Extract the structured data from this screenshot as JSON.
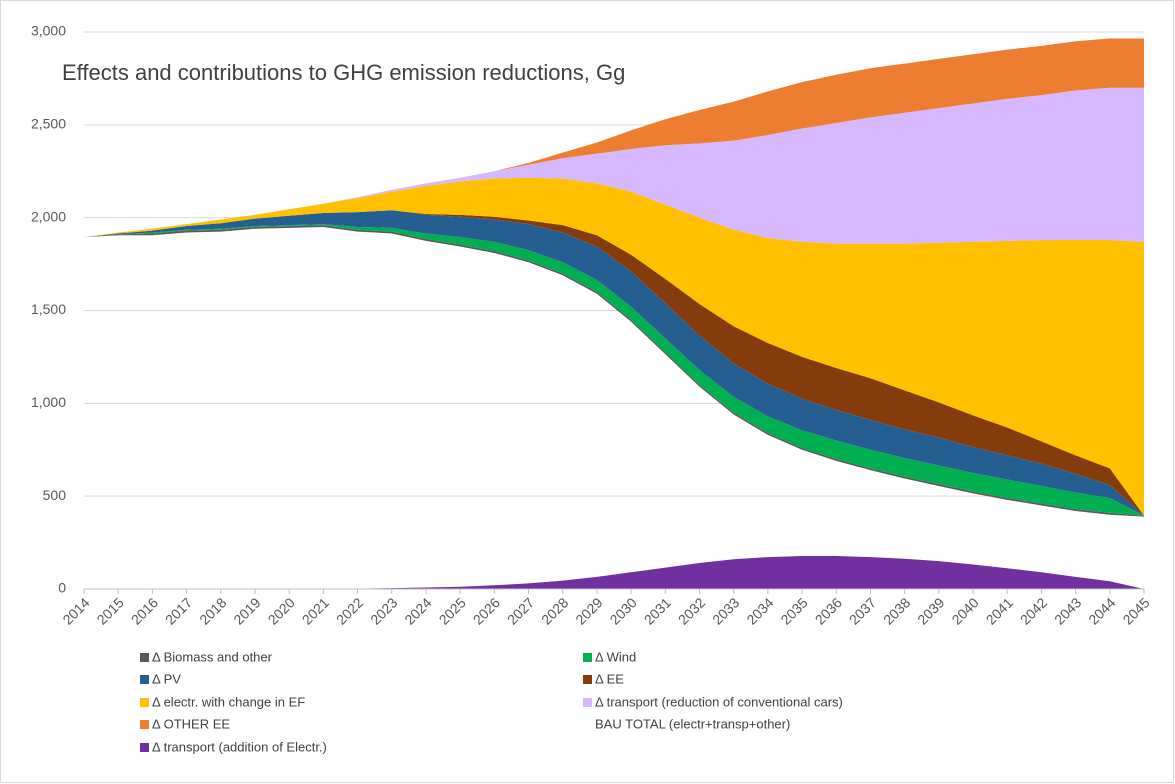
{
  "chart_data": {
    "type": "stacked_area",
    "title": "Effects and contributions to GHG emission reductions, Gg",
    "categories": [
      "2014",
      "2015",
      "2016",
      "2017",
      "2018",
      "2019",
      "2020",
      "2021",
      "2022",
      "2023",
      "2024",
      "2025",
      "2026",
      "2027",
      "2028",
      "2029",
      "2030",
      "2031",
      "2032",
      "2033",
      "2034",
      "2035",
      "2036",
      "2037",
      "2038",
      "2039",
      "2040",
      "2041",
      "2042",
      "2043",
      "2044",
      "2045"
    ],
    "series": [
      {
        "name": "Δ Biomass and other",
        "color": "#595959",
        "values": [
          0,
          5,
          10,
          10,
          10,
          10,
          10,
          10,
          10,
          10,
          10,
          10,
          10,
          10,
          10,
          10,
          10,
          10,
          10,
          10,
          10,
          10,
          10,
          10,
          10,
          10,
          10,
          10,
          10,
          10,
          10,
          5
        ]
      },
      {
        "name": "Δ Wind",
        "color": "#00b050",
        "values": [
          0,
          0,
          5,
          5,
          5,
          5,
          5,
          5,
          15,
          20,
          30,
          40,
          50,
          55,
          60,
          65,
          70,
          75,
          80,
          85,
          90,
          95,
          100,
          100,
          100,
          100,
          100,
          100,
          95,
          90,
          80,
          0
        ]
      },
      {
        "name": "Δ PV",
        "color": "#255e91",
        "values": [
          0,
          5,
          10,
          20,
          30,
          40,
          50,
          60,
          80,
          95,
          100,
          110,
          120,
          140,
          160,
          180,
          190,
          190,
          185,
          180,
          175,
          170,
          165,
          160,
          155,
          150,
          140,
          130,
          120,
          100,
          70,
          0
        ]
      },
      {
        "name": "Δ  EE",
        "color": "#843c0c",
        "values": [
          0,
          0,
          0,
          0,
          0,
          0,
          0,
          0,
          0,
          0,
          5,
          10,
          15,
          20,
          40,
          60,
          90,
          130,
          170,
          200,
          220,
          225,
          225,
          225,
          210,
          190,
          170,
          150,
          120,
          100,
          90,
          0
        ]
      },
      {
        "name": "Δ electr. with change in EF",
        "color": "#ffc000",
        "values": [
          0,
          5,
          10,
          10,
          20,
          20,
          35,
          50,
          75,
          100,
          150,
          180,
          205,
          230,
          250,
          280,
          340,
          400,
          465,
          520,
          565,
          620,
          670,
          725,
          790,
          860,
          935,
          1005,
          1085,
          1160,
          1230,
          1475
        ]
      },
      {
        "name": "Δ transport (reduction of conventional cars)",
        "color": "#d5b8ff",
        "values": [
          0,
          0,
          0,
          0,
          0,
          0,
          0,
          0,
          5,
          10,
          15,
          20,
          40,
          70,
          110,
          160,
          230,
          320,
          400,
          480,
          555,
          610,
          650,
          680,
          705,
          725,
          745,
          765,
          780,
          805,
          820,
          830
        ]
      },
      {
        "name": "Δ OTHER EE",
        "color": "#ed7d31",
        "values": [
          0,
          0,
          0,
          0,
          0,
          0,
          0,
          0,
          0,
          0,
          0,
          0,
          0,
          10,
          30,
          60,
          100,
          140,
          180,
          210,
          235,
          250,
          260,
          265,
          265,
          265,
          265,
          265,
          265,
          265,
          265,
          265
        ]
      },
      {
        "name": "BAU  TOTAL (electr+transp+other)",
        "color": "transparent",
        "values": [
          1895,
          1905,
          1905,
          1920,
          1925,
          1940,
          1945,
          1950,
          1925,
          1915,
          1875,
          1845,
          1810,
          1760,
          1690,
          1590,
          1440,
          1265,
          1090,
          940,
          830,
          750,
          690,
          640,
          595,
          555,
          515,
          480,
          450,
          420,
          400,
          390
        ]
      },
      {
        "name": "Δ transport (addition of Electr.)",
        "color": "#7030a0",
        "values": [
          0,
          0,
          0,
          0,
          0,
          0,
          0,
          0,
          2,
          5,
          8,
          12,
          20,
          30,
          45,
          65,
          90,
          115,
          140,
          160,
          172,
          178,
          178,
          172,
          163,
          150,
          132,
          112,
          90,
          65,
          42,
          0
        ]
      }
    ],
    "ylim": [
      0,
      3000
    ],
    "yticks": [
      0,
      500,
      {
        "value": 1000,
        "label": "1,000"
      },
      {
        "value": 1500,
        "label": "1,500"
      },
      {
        "value": 2000,
        "label": "2,000"
      },
      {
        "value": 2500,
        "label": "2,500"
      },
      {
        "value": 3000,
        "label": "3,000"
      }
    ],
    "grid": true
  }
}
